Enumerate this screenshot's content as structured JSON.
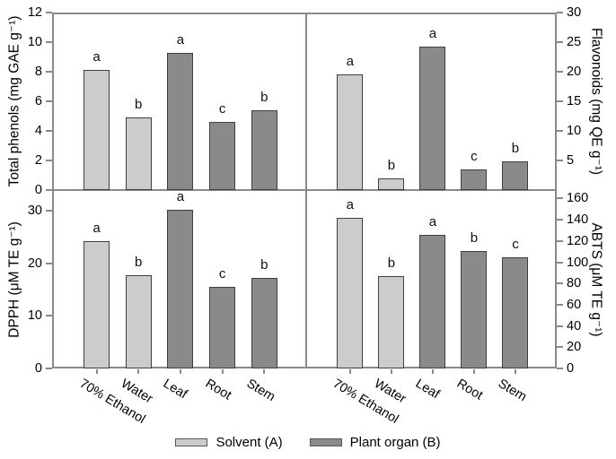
{
  "figure": {
    "background": "#ffffff",
    "frame_color": "#8a8a8a",
    "bar_border_color": "#3f3f3f"
  },
  "groups": {
    "solvent": "#cccccc",
    "plant_organ": "#8a8a8a"
  },
  "legend": [
    {
      "label": "Solvent (A)",
      "color": "#cccccc"
    },
    {
      "label": "Plant organ (B)",
      "color": "#8a8a8a"
    }
  ],
  "categories": [
    "70% Ethanol",
    "Water",
    "Leaf",
    "Root",
    "Stem"
  ],
  "bar_groups": [
    "solvent",
    "solvent",
    "plant_organ",
    "plant_organ",
    "plant_organ"
  ],
  "chart_data": [
    {
      "id": "total-phenols",
      "type": "bar",
      "panel": "top-left",
      "axis_side": "left",
      "show_x_labels": false,
      "ylabel": "Total phenols (mg GAE g⁻¹)",
      "categories": [
        "70% Ethanol",
        "Water",
        "Leaf",
        "Root",
        "Stem"
      ],
      "values": [
        8.1,
        4.9,
        9.3,
        4.6,
        5.4
      ],
      "sig_letters": [
        "a",
        "b",
        "a",
        "c",
        "b"
      ],
      "yticks": [
        0,
        2,
        4,
        6,
        8,
        10,
        12
      ],
      "ylim": [
        0,
        12
      ]
    },
    {
      "id": "flavonoids",
      "type": "bar",
      "panel": "top-right",
      "axis_side": "right",
      "show_x_labels": false,
      "ylabel": "Flavonoids (mg QE g⁻¹)",
      "categories": [
        "70% Ethanol",
        "Water",
        "Leaf",
        "Root",
        "Stem"
      ],
      "values": [
        19.6,
        2.0,
        24.2,
        3.5,
        4.8
      ],
      "sig_letters": [
        "a",
        "b",
        "a",
        "c",
        "b"
      ],
      "yticks": [
        5,
        10,
        15,
        20,
        25,
        30
      ],
      "ylim": [
        0,
        30
      ]
    },
    {
      "id": "dpph",
      "type": "bar",
      "panel": "bottom-left",
      "axis_side": "left",
      "show_x_labels": true,
      "ylabel": "DPPH (μM TE g⁻¹)",
      "categories": [
        "70% Ethanol",
        "Water",
        "Leaf",
        "Root",
        "Stem"
      ],
      "values": [
        24.2,
        17.8,
        30.2,
        15.5,
        17.2
      ],
      "sig_letters": [
        "a",
        "b",
        "a",
        "c",
        "b"
      ],
      "yticks": [
        0,
        10,
        20,
        30
      ],
      "ylim": [
        0,
        34
      ]
    },
    {
      "id": "abts",
      "type": "bar",
      "panel": "bottom-right",
      "axis_side": "right",
      "show_x_labels": true,
      "ylabel": "ABTS (μM TE g⁻¹)",
      "categories": [
        "70% Ethanol",
        "Water",
        "Leaf",
        "Root",
        "Stem"
      ],
      "values": [
        142,
        87,
        126,
        111,
        105
      ],
      "sig_letters": [
        "a",
        "b",
        "a",
        "b",
        "c"
      ],
      "yticks": [
        0,
        20,
        40,
        60,
        80,
        100,
        120,
        140,
        160
      ],
      "ylim": [
        0,
        168
      ]
    }
  ]
}
